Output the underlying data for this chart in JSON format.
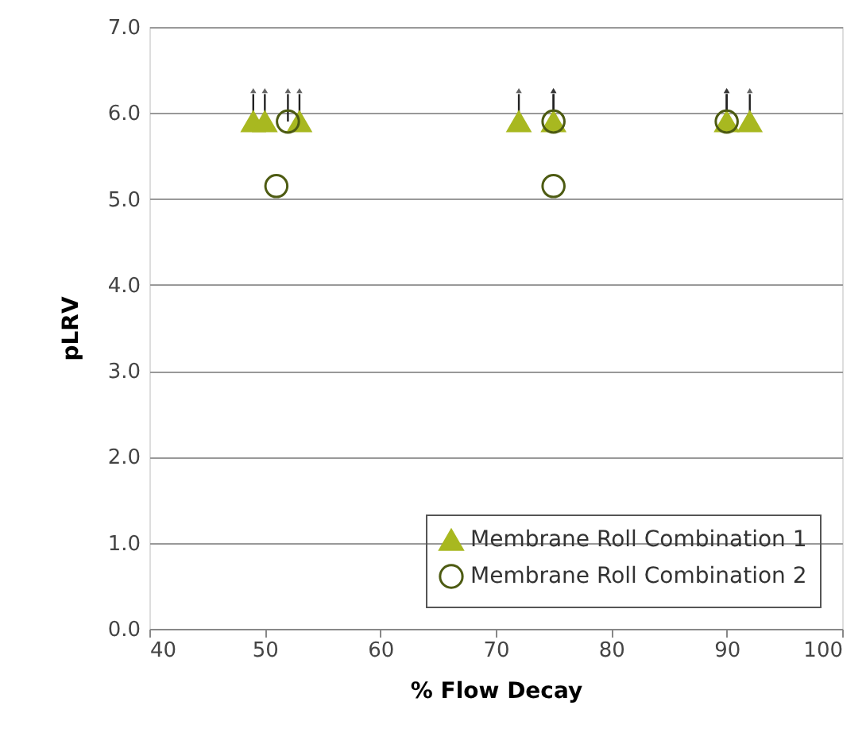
{
  "chart_data": {
    "type": "scatter",
    "xlabel": "% Flow Decay",
    "ylabel": "pLRV",
    "xlim": [
      40,
      100
    ],
    "xticks": [
      40,
      50,
      60,
      70,
      80,
      90,
      100
    ],
    "ylim": [
      0,
      7
    ],
    "yticks": [
      {
        "value": 0,
        "label": "0.0"
      },
      {
        "value": 1,
        "label": "1.0"
      },
      {
        "value": 2,
        "label": "2.0"
      },
      {
        "value": 3,
        "label": "3.0"
      },
      {
        "value": 4,
        "label": "4.0"
      },
      {
        "value": 5,
        "label": "5.0"
      },
      {
        "value": 6,
        "label": "6.0"
      },
      {
        "value": 7,
        "label": "7.0"
      }
    ],
    "grid": "y",
    "legend": "bottom right",
    "series": [
      {
        "name": "Membrane Roll Combination 1",
        "color": "#a8b820",
        "marker": "triangle",
        "x": [
          49,
          50,
          53,
          72,
          75,
          90,
          92
        ],
        "values": [
          5.9,
          5.9,
          5.9,
          5.9,
          5.9,
          5.9,
          5.9
        ]
      },
      {
        "name": "Membrane Roll Combination 2",
        "color": "#4d5b12",
        "marker": "circle",
        "x": [
          51,
          52,
          75,
          75,
          90
        ],
        "values": [
          5.15,
          5.9,
          5.15,
          5.9,
          5.9
        ]
      }
    ]
  }
}
